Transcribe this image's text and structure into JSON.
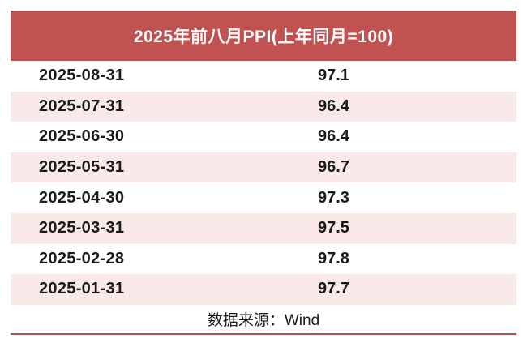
{
  "header": {
    "title": "2025年前八月PPI(上年同月=100)"
  },
  "table": {
    "rows": [
      {
        "date": "2025-08-31",
        "value": "97.1"
      },
      {
        "date": "2025-07-31",
        "value": "96.4"
      },
      {
        "date": "2025-06-30",
        "value": "96.4"
      },
      {
        "date": "2025-05-31",
        "value": "96.7"
      },
      {
        "date": "2025-04-30",
        "value": "97.3"
      },
      {
        "date": "2025-03-31",
        "value": "97.5"
      },
      {
        "date": "2025-02-28",
        "value": "97.8"
      },
      {
        "date": "2025-01-31",
        "value": "97.7"
      }
    ]
  },
  "footer": {
    "source": "数据来源：Wind"
  },
  "colors": {
    "header_bg": "#c05351",
    "header_text": "#ffffff",
    "row_alt_bg": "#f9e9e8",
    "accent_line": "#c0504e",
    "body_text": "#1a1a1a"
  },
  "chart_data": {
    "type": "table",
    "title": "2025年前八月PPI(上年同月=100)",
    "categories": [
      "2025-08-31",
      "2025-07-31",
      "2025-06-30",
      "2025-05-31",
      "2025-04-30",
      "2025-03-31",
      "2025-02-28",
      "2025-01-31"
    ],
    "values": [
      97.1,
      96.4,
      96.4,
      96.7,
      97.3,
      97.5,
      97.8,
      97.7
    ],
    "source_note": "数据来源：Wind"
  }
}
